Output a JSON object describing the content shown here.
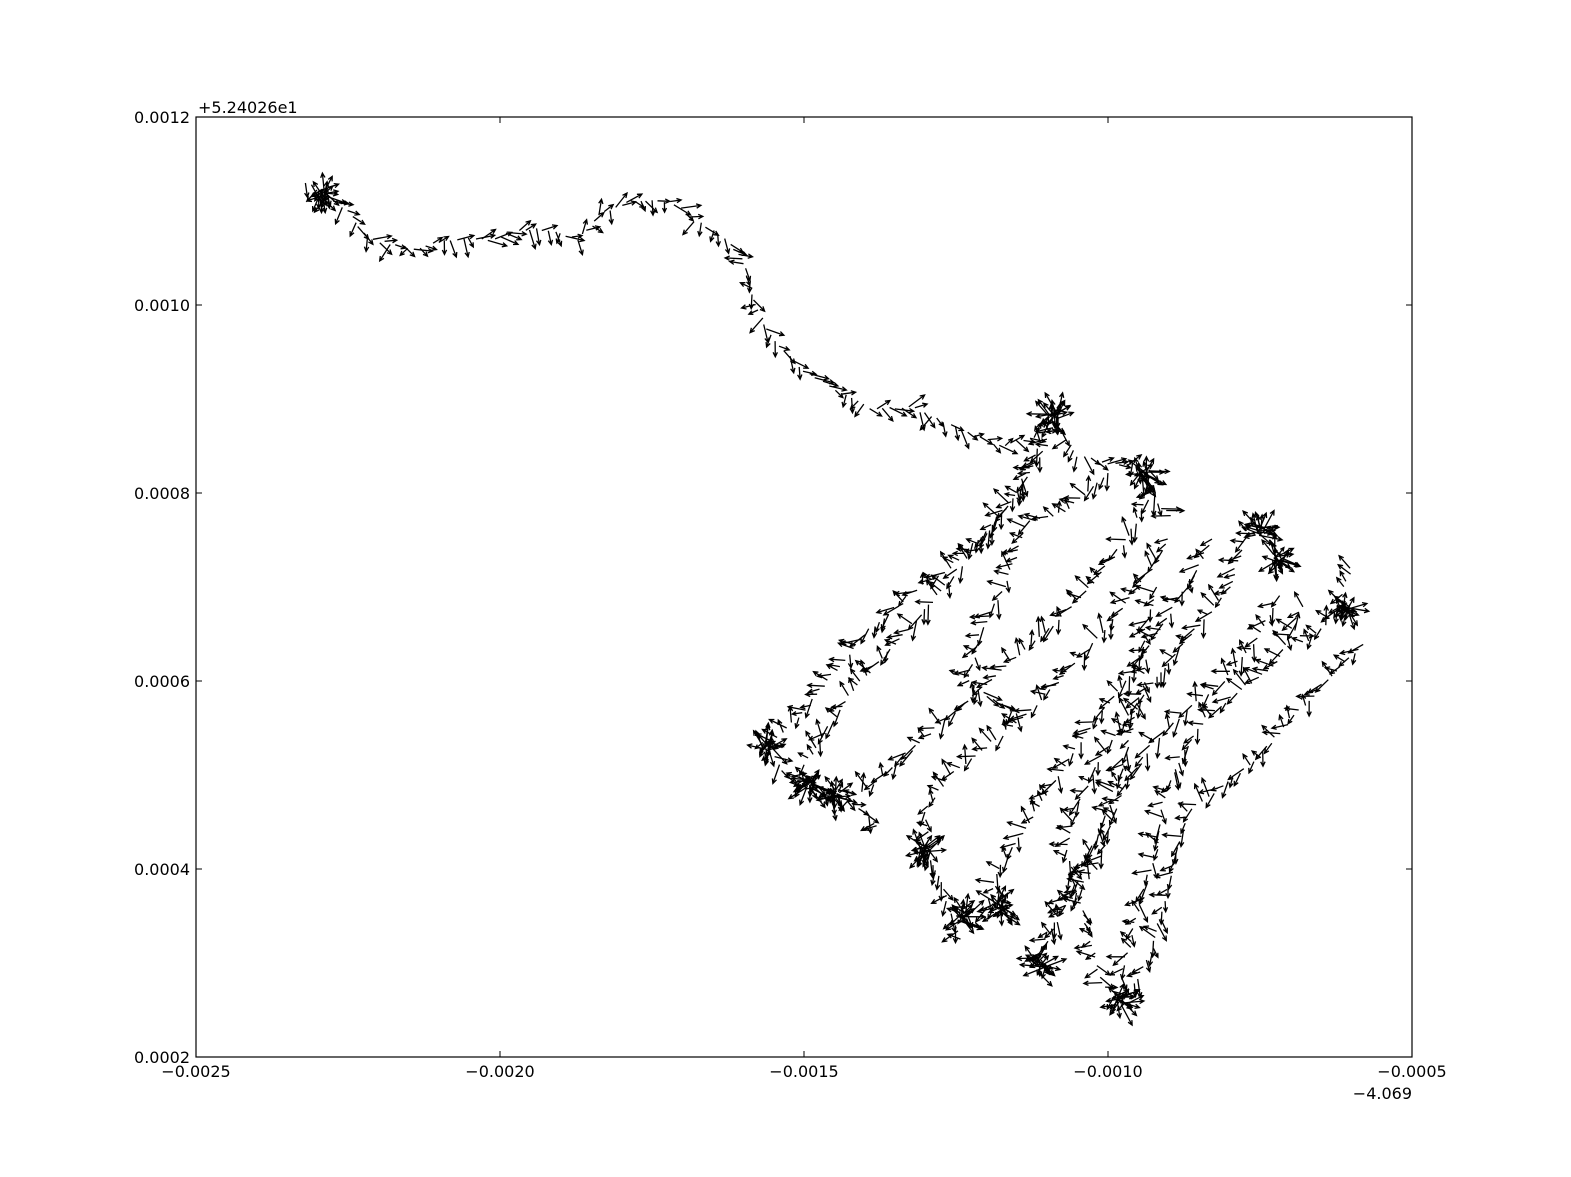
{
  "chart_data": {
    "type": "quiver",
    "title": "",
    "xlabel": "",
    "ylabel": "",
    "xlim": [
      -0.0025,
      -0.0005
    ],
    "ylim": [
      0.0002,
      0.0012
    ],
    "x_offset_label": "−4.069",
    "y_offset_label": "+5.24026e1",
    "x_ticks": [
      -0.0025,
      -0.002,
      -0.0015,
      -0.001,
      -0.0005
    ],
    "x_tick_labels": [
      "−0.0025",
      "−0.0020",
      "−0.0015",
      "−0.0010",
      "−0.0005"
    ],
    "y_ticks": [
      0.0002,
      0.0004,
      0.0006,
      0.0008,
      0.001,
      0.0012
    ],
    "y_tick_labels": [
      "0.0002",
      "0.0004",
      "0.0006",
      "0.0008",
      "0.0010",
      "0.0012"
    ],
    "grid": false,
    "paths": [
      [
        [
          -0.00232,
          0.00113
        ],
        [
          -0.00229,
          0.00112
        ],
        [
          -0.00225,
          0.0011
        ],
        [
          -0.00222,
          0.00107
        ],
        [
          -0.00214,
          0.00106
        ],
        [
          -0.00207,
          0.00107
        ],
        [
          -0.00201,
          0.00107
        ],
        [
          -0.00197,
          0.00108
        ],
        [
          -0.00192,
          0.00108
        ],
        [
          -0.00187,
          0.00107
        ],
        [
          -0.00183,
          0.0011
        ],
        [
          -0.00178,
          0.00111
        ],
        [
          -0.00172,
          0.00111
        ],
        [
          -0.00168,
          0.00109
        ],
        [
          -0.00163,
          0.00107
        ],
        [
          -0.0016,
          0.00105
        ],
        [
          -0.00158,
          0.001
        ],
        [
          -0.00155,
          0.00096
        ],
        [
          -0.0015,
          0.00093
        ],
        [
          -0.00145,
          0.00091
        ],
        [
          -0.00139,
          0.00089
        ],
        [
          -0.00132,
          0.00089
        ],
        [
          -0.00125,
          0.00087
        ],
        [
          -0.00118,
          0.00085
        ],
        [
          -0.00112,
          0.00086
        ],
        [
          -0.00109,
          0.00088
        ],
        [
          -0.00105,
          0.00084
        ],
        [
          -0.001,
          0.00083
        ],
        [
          -0.00095,
          0.00083
        ],
        [
          -0.00092,
          0.00079
        ],
        [
          -0.00089,
          0.00077
        ]
      ],
      [
        [
          -0.00108,
          0.00088
        ],
        [
          -0.00112,
          0.00084
        ],
        [
          -0.00116,
          0.00079
        ],
        [
          -0.0012,
          0.00076
        ],
        [
          -0.00126,
          0.00072
        ],
        [
          -0.00133,
          0.00069
        ],
        [
          -0.0014,
          0.00065
        ],
        [
          -0.00146,
          0.0006
        ],
        [
          -0.00151,
          0.00056
        ],
        [
          -0.00156,
          0.00053
        ],
        [
          -0.00153,
          0.0005
        ],
        [
          -0.0015,
          0.00049
        ]
      ],
      [
        [
          -0.0011,
          0.00085
        ],
        [
          -0.00115,
          0.0008
        ],
        [
          -0.00122,
          0.00074
        ],
        [
          -0.00128,
          0.00069
        ],
        [
          -0.00135,
          0.00064
        ],
        [
          -0.00142,
          0.00059
        ],
        [
          -0.00147,
          0.00054
        ],
        [
          -0.00151,
          0.0005
        ],
        [
          -0.00146,
          0.00048
        ],
        [
          -0.00142,
          0.00047
        ],
        [
          -0.00137,
          0.00044
        ]
      ],
      [
        [
          -0.001,
          0.00082
        ],
        [
          -0.00107,
          0.00078
        ],
        [
          -0.00113,
          0.00077
        ],
        [
          -0.00117,
          0.0007
        ],
        [
          -0.00121,
          0.00065
        ],
        [
          -0.00123,
          0.0006
        ],
        [
          -0.00119,
          0.00058
        ],
        [
          -0.00114,
          0.00056
        ]
      ],
      [
        [
          -0.00093,
          0.0008
        ],
        [
          -0.00097,
          0.00075
        ],
        [
          -0.00103,
          0.0007
        ],
        [
          -0.00109,
          0.00066
        ],
        [
          -0.00116,
          0.00062
        ],
        [
          -0.00123,
          0.00058
        ],
        [
          -0.0013,
          0.00054
        ],
        [
          -0.00137,
          0.0005
        ],
        [
          -0.00143,
          0.00047
        ]
      ],
      [
        [
          -0.0009,
          0.00075
        ],
        [
          -0.00095,
          0.0007
        ],
        [
          -0.00101,
          0.00065
        ],
        [
          -0.00108,
          0.0006
        ],
        [
          -0.00114,
          0.00056
        ],
        [
          -0.0012,
          0.00053
        ],
        [
          -0.00126,
          0.0005
        ],
        [
          -0.0013,
          0.00046
        ],
        [
          -0.00129,
          0.00041
        ],
        [
          -0.00126,
          0.00036
        ],
        [
          -0.00124,
          0.00032
        ]
      ],
      [
        [
          -0.00083,
          0.00075
        ],
        [
          -0.00087,
          0.0007
        ],
        [
          -0.00092,
          0.00065
        ],
        [
          -0.00097,
          0.0006
        ],
        [
          -0.00103,
          0.00055
        ],
        [
          -0.00108,
          0.0005
        ],
        [
          -0.00113,
          0.00045
        ],
        [
          -0.00118,
          0.0004
        ],
        [
          -0.0012,
          0.00036
        ],
        [
          -0.00116,
          0.00035
        ]
      ],
      [
        [
          -0.00092,
          0.0007
        ],
        [
          -0.00094,
          0.00065
        ],
        [
          -0.00094,
          0.0006
        ],
        [
          -0.00096,
          0.00055
        ],
        [
          -0.00098,
          0.0005
        ],
        [
          -0.00101,
          0.00045
        ],
        [
          -0.00104,
          0.0004
        ],
        [
          -0.00108,
          0.00035
        ],
        [
          -0.00111,
          0.00031
        ],
        [
          -0.00111,
          0.00028
        ]
      ],
      [
        [
          -0.00077,
          0.00076
        ],
        [
          -0.0008,
          0.0007
        ],
        [
          -0.00085,
          0.00066
        ],
        [
          -0.0009,
          0.00062
        ],
        [
          -0.00096,
          0.00057
        ],
        [
          -0.00101,
          0.00052
        ],
        [
          -0.00105,
          0.00047
        ],
        [
          -0.00107,
          0.00042
        ],
        [
          -0.00105,
          0.00037
        ],
        [
          -0.00103,
          0.00033
        ],
        [
          -0.00101,
          0.00028
        ],
        [
          -0.00098,
          0.00026
        ]
      ],
      [
        [
          -0.00072,
          0.00069
        ],
        [
          -0.00076,
          0.00064
        ],
        [
          -0.00081,
          0.0006
        ],
        [
          -0.00087,
          0.00057
        ],
        [
          -0.00093,
          0.00053
        ],
        [
          -0.00097,
          0.00049
        ],
        [
          -0.001,
          0.00044
        ],
        [
          -0.00102,
          0.0004
        ],
        [
          -0.00107,
          0.00036
        ],
        [
          -0.00111,
          0.00032
        ]
      ],
      [
        [
          -0.00068,
          0.00068
        ],
        [
          -0.00072,
          0.00062
        ],
        [
          -0.00078,
          0.00059
        ],
        [
          -0.00084,
          0.00056
        ],
        [
          -0.00088,
          0.00052
        ],
        [
          -0.00091,
          0.00047
        ],
        [
          -0.00092,
          0.00042
        ],
        [
          -0.00094,
          0.00038
        ],
        [
          -0.00096,
          0.00033
        ],
        [
          -0.00098,
          0.00028
        ]
      ],
      [
        [
          -0.00058,
          0.00064
        ],
        [
          -0.00064,
          0.0006
        ],
        [
          -0.0007,
          0.00056
        ],
        [
          -0.00075,
          0.00052
        ],
        [
          -0.00081,
          0.00049
        ],
        [
          -0.00087,
          0.00046
        ],
        [
          -0.00089,
          0.00041
        ],
        [
          -0.00091,
          0.00036
        ],
        [
          -0.00093,
          0.00031
        ],
        [
          -0.00096,
          0.00027
        ]
      ],
      [
        [
          -0.0006,
          0.00072
        ],
        [
          -0.00062,
          0.00068
        ],
        [
          -0.00064,
          0.00066
        ],
        [
          -0.00068,
          0.00064
        ],
        [
          -0.0007,
          0.00066
        ]
      ]
    ],
    "clusters": [
      [
        -0.00229,
        0.00112
      ],
      [
        -0.00156,
        0.00053
      ],
      [
        -0.00149,
        0.00049
      ],
      [
        -0.00145,
        0.00048
      ],
      [
        -0.0013,
        0.00042
      ],
      [
        -0.00124,
        0.00035
      ],
      [
        -0.00118,
        0.00036
      ],
      [
        -0.00111,
        0.0003
      ],
      [
        -0.00109,
        0.00088
      ],
      [
        -0.00094,
        0.00082
      ],
      [
        -0.00075,
        0.00076
      ],
      [
        -0.00072,
        0.00073
      ],
      [
        -0.00061,
        0.00068
      ],
      [
        -0.00098,
        0.00026
      ]
    ]
  }
}
